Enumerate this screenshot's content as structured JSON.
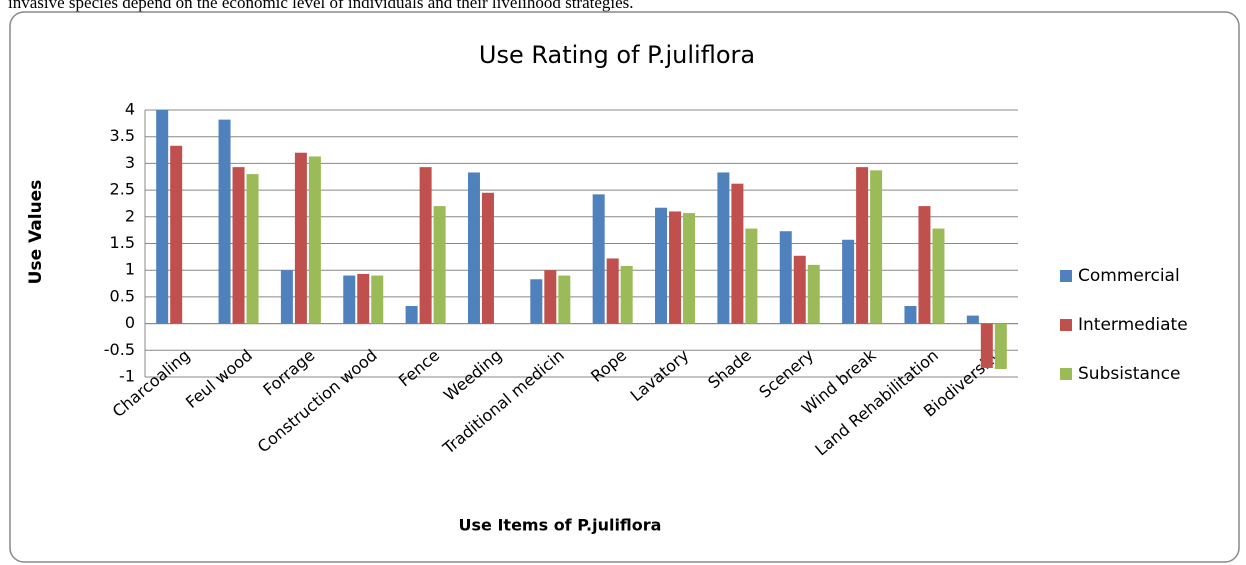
{
  "page_text": "invasive species depend on the economic level of individuals and their livelihood strategies.",
  "chart_data": {
    "type": "bar",
    "title": "Use Rating of P.juliflora",
    "x_label": "Use Items of P.juliflora",
    "y_label": "Use Values",
    "categories": [
      "Charcoaling",
      "Feul wood",
      "Forrage",
      "Construction wood",
      "Fence",
      "Weeding",
      "Traditional medicin",
      "Rope",
      "Lavatory",
      "Shade",
      "Scenery",
      "Wind break",
      "Land Rehabilitation",
      "Biodiversity"
    ],
    "series": [
      {
        "name": "Commercial",
        "color": "#4f81bd",
        "values": [
          4,
          3.82,
          1.0,
          0.9,
          0.33,
          2.83,
          0.83,
          2.42,
          2.17,
          2.83,
          1.73,
          1.57,
          0.33,
          0.15
        ]
      },
      {
        "name": "Intermediate",
        "color": "#c0504d",
        "values": [
          3.33,
          2.93,
          3.2,
          0.93,
          2.93,
          2.45,
          1.0,
          1.22,
          2.1,
          2.62,
          1.27,
          2.93,
          2.2,
          -0.83
        ]
      },
      {
        "name": "Subsistance",
        "color": "#9bbb59",
        "values": [
          0,
          2.8,
          3.13,
          0.9,
          2.2,
          0,
          0.9,
          1.08,
          2.07,
          1.78,
          1.1,
          2.87,
          1.78,
          -0.85
        ]
      }
    ],
    "ylim": [
      -1,
      4
    ],
    "yticks": [
      -1,
      -0.5,
      0,
      0.5,
      1,
      1.5,
      2,
      2.5,
      3,
      3.5,
      4
    ],
    "grid": true,
    "legend": "right"
  }
}
